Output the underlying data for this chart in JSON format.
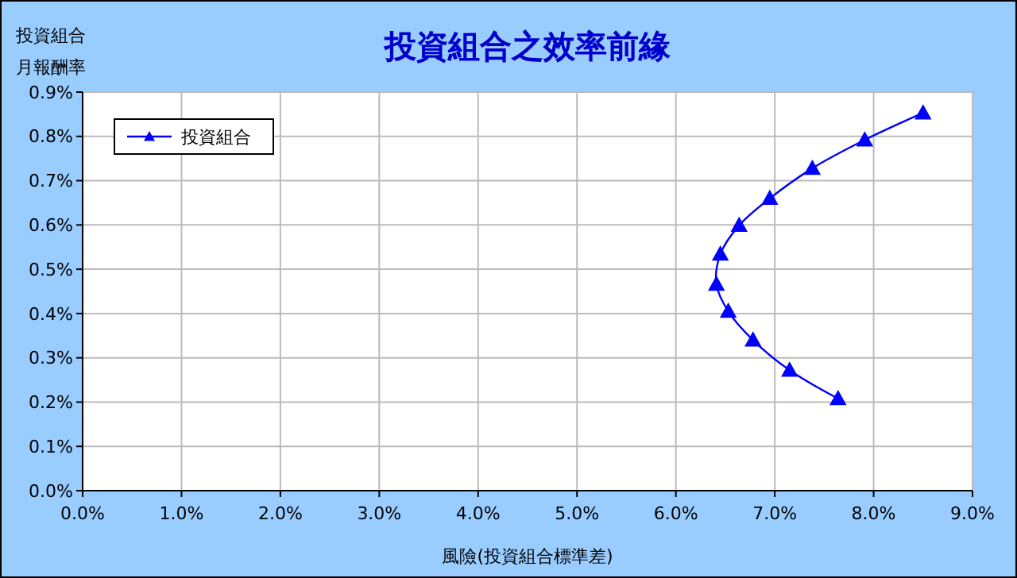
{
  "chart_data": {
    "type": "line",
    "title": "投資組合之效率前緣",
    "xlabel": "風險(投資組合標準差)",
    "ylabel": "投資組合月報酬率",
    "series": [
      {
        "name": "投資組合",
        "color": "#0000ff",
        "x": [
          7.64,
          7.15,
          6.78,
          6.53,
          6.41,
          6.45,
          6.64,
          6.95,
          7.38,
          7.91,
          8.5
        ],
        "values": [
          0.208,
          0.272,
          0.34,
          0.405,
          0.466,
          0.534,
          0.599,
          0.66,
          0.728,
          0.792,
          0.853
        ]
      }
    ],
    "xlim": [
      0,
      9
    ],
    "ylim": [
      0,
      0.9
    ],
    "xticks": [
      {
        "value": 0,
        "label": "0.0%"
      },
      {
        "value": 1,
        "label": "1.0%"
      },
      {
        "value": 2,
        "label": "2.0%"
      },
      {
        "value": 3,
        "label": "3.0%"
      },
      {
        "value": 4,
        "label": "4.0%"
      },
      {
        "value": 5,
        "label": "5.0%"
      },
      {
        "value": 6,
        "label": "6.0%"
      },
      {
        "value": 7,
        "label": "7.0%"
      },
      {
        "value": 8,
        "label": "8.0%"
      },
      {
        "value": 9,
        "label": "9.0%"
      }
    ],
    "yticks": [
      {
        "value": 0,
        "label": "0.0%"
      },
      {
        "value": 0.1,
        "label": "0.1%"
      },
      {
        "value": 0.2,
        "label": "0.2%"
      },
      {
        "value": 0.3,
        "label": "0.3%"
      },
      {
        "value": 0.4,
        "label": "0.4%"
      },
      {
        "value": 0.5,
        "label": "0.5%"
      },
      {
        "value": 0.6,
        "label": "0.6%"
      },
      {
        "value": 0.7,
        "label": "0.7%"
      },
      {
        "value": 0.8,
        "label": "0.8%"
      },
      {
        "value": 0.9,
        "label": "0.9%"
      }
    ],
    "grid": true,
    "legend": "top left",
    "marker": "triangle",
    "line_style": "solid"
  }
}
